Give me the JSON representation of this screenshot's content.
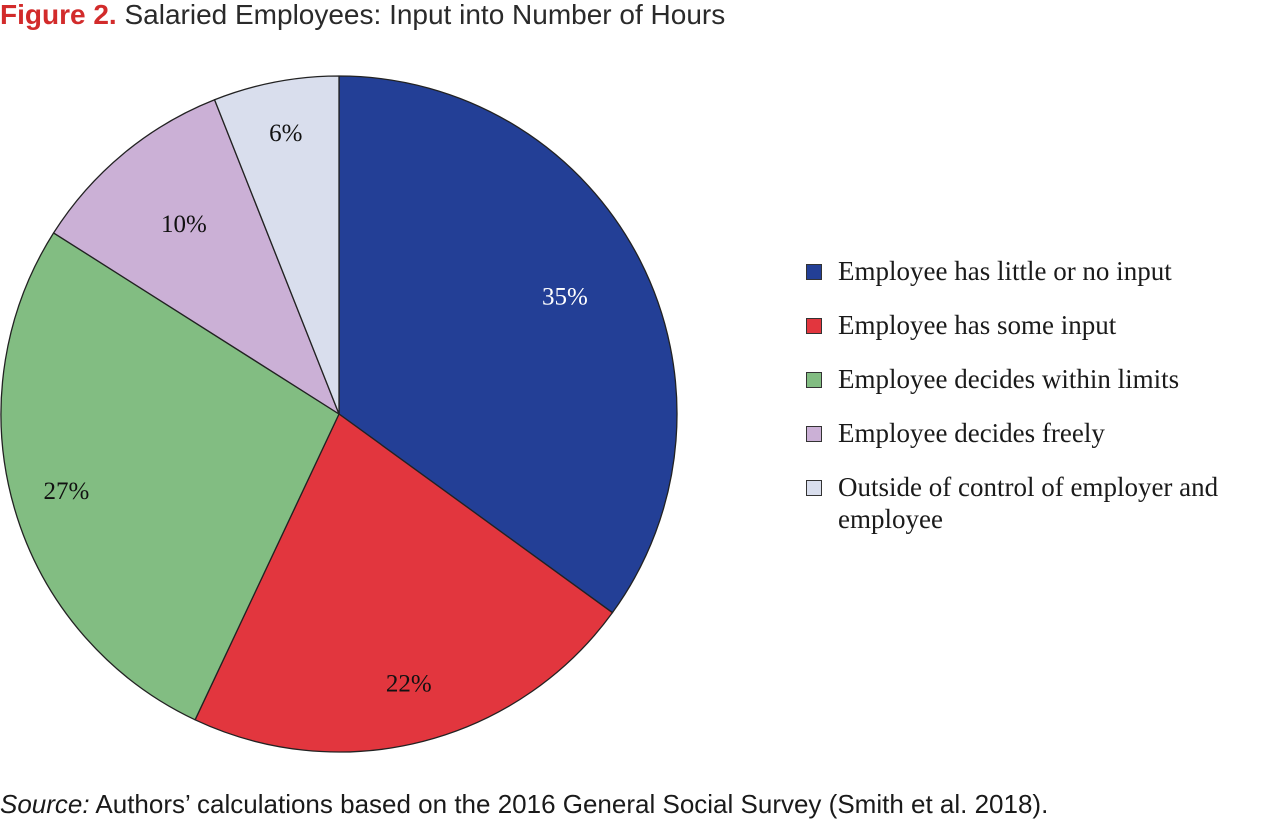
{
  "header": {
    "figure_label": "Figure 2.",
    "title": "Salaried Employees: Input into Number of Hours"
  },
  "chart_data": {
    "type": "pie",
    "start_angle_deg": 0,
    "direction": "clockwise",
    "slices": [
      {
        "label": "Employee has little or no input",
        "value": 35,
        "display": "35%",
        "color": "#233f96",
        "label_color": "#ffffff"
      },
      {
        "label": "Employee has some input",
        "value": 22,
        "display": "22%",
        "color": "#e2363e",
        "label_color": "#111111"
      },
      {
        "label": "Employee decides within limits",
        "value": 27,
        "display": "27%",
        "color": "#82bd82",
        "label_color": "#111111"
      },
      {
        "label": "Employee decides freely",
        "value": 10,
        "display": "10%",
        "color": "#cbb0d6",
        "label_color": "#111111"
      },
      {
        "label": "Outside of control of employer and employee",
        "value": 6,
        "display": "6%",
        "color": "#d9deed",
        "label_color": "#111111"
      }
    ],
    "legend_position": "right"
  },
  "footer": {
    "source_label": "Source:",
    "source_text": " Authors’ calculations based on the 2016 General Social Survey (Smith et al. 2018)."
  }
}
